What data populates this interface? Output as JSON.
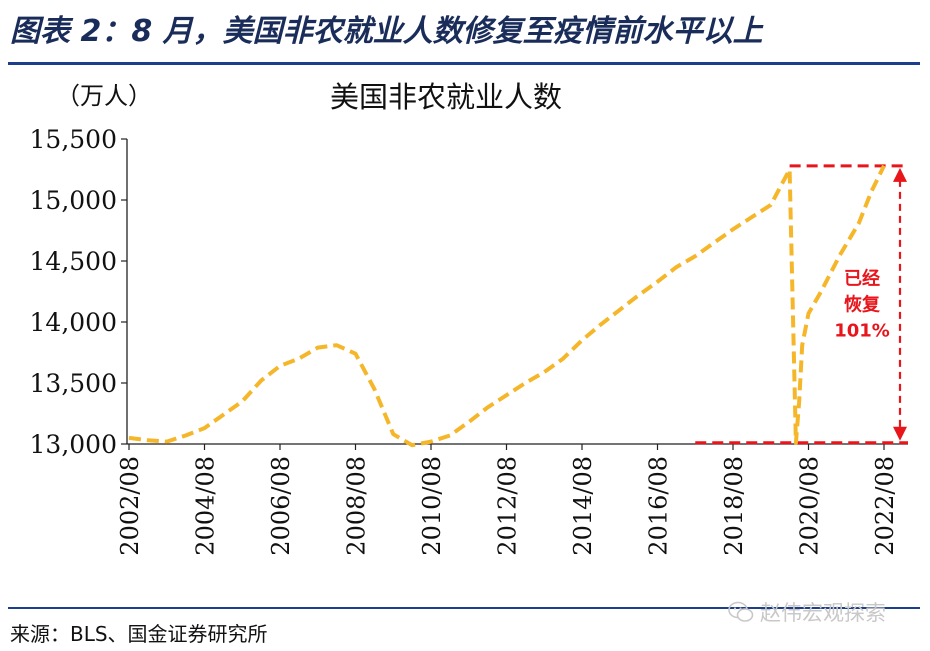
{
  "figure": {
    "title": "图表 2：8 月，美国非农就业人数修复至疫情前水平以上",
    "source": "来源：BLS、国金证券研究所",
    "watermark": "赵伟宏观探索",
    "watermark_icon": "wechat-icon"
  },
  "colors": {
    "series": "#F5B62A",
    "annotation": "#E8151B",
    "title": "#1a2d5a",
    "rule": "#1d3e8a"
  },
  "chart_data": {
    "type": "line",
    "title": "美国非农就业人数",
    "unit_label": "（万人）",
    "ylim": [
      13000,
      15500
    ],
    "yticks": [
      13000,
      13500,
      14000,
      14500,
      15000,
      15500
    ],
    "ytick_labels": [
      "13,000",
      "13,500",
      "14,000",
      "14,500",
      "15,000",
      "15,500"
    ],
    "xticks": [
      "2002/08",
      "2004/08",
      "2006/08",
      "2008/08",
      "2010/08",
      "2012/08",
      "2014/08",
      "2016/08",
      "2018/08",
      "2020/08",
      "2022/08"
    ],
    "grid": false,
    "line_style": "dashed",
    "series": [
      {
        "x": [
          "2002/08",
          "2003/02",
          "2003/08",
          "2004/02",
          "2004/08",
          "2005/02",
          "2005/08",
          "2006/02",
          "2006/08",
          "2007/02",
          "2007/08",
          "2008/02",
          "2008/08",
          "2009/02",
          "2009/08",
          "2010/02",
          "2010/08",
          "2011/02",
          "2011/08",
          "2012/02",
          "2012/08",
          "2013/02",
          "2013/08",
          "2014/02",
          "2014/08",
          "2015/02",
          "2015/08",
          "2016/02",
          "2016/08",
          "2017/02",
          "2017/08",
          "2018/02",
          "2018/08",
          "2019/02",
          "2019/08",
          "2020/02",
          "2020/04",
          "2020/05",
          "2020/06",
          "2020/08",
          "2020/12",
          "2021/06",
          "2021/12",
          "2022/04",
          "2022/08"
        ],
        "values": [
          13050,
          13030,
          13020,
          13070,
          13130,
          13240,
          13350,
          13520,
          13640,
          13700,
          13790,
          13810,
          13740,
          13450,
          13080,
          12990,
          13020,
          13070,
          13180,
          13300,
          13400,
          13500,
          13590,
          13700,
          13850,
          13980,
          14100,
          14220,
          14330,
          14450,
          14540,
          14650,
          14760,
          14860,
          14960,
          15250,
          13010,
          13340,
          13810,
          14070,
          14250,
          14550,
          14810,
          15070,
          15280
        ]
      }
    ],
    "annotations": [
      {
        "type": "hline",
        "y": 15280,
        "x_start": "2020/02",
        "x_end": "2022/08"
      },
      {
        "type": "hline",
        "y": 13010,
        "x_start": "2017/08",
        "x_end": "2022/08"
      },
      {
        "type": "double-arrow",
        "y_from": 13010,
        "y_to": 15280,
        "text": [
          "已经",
          "恢复",
          "101%"
        ]
      }
    ]
  }
}
